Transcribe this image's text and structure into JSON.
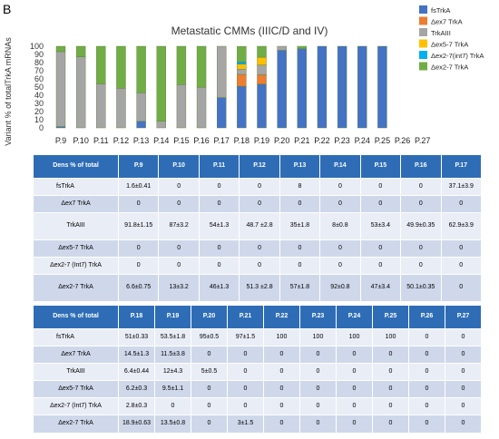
{
  "panel_letter": "B",
  "chart_data": {
    "type": "bar",
    "stacked": true,
    "title": "Metastatic CMMs (IIIC/D and IV)",
    "ylabel": "Variant % of totalTrkA mRNAs",
    "xlabel": "",
    "ylim": [
      0,
      100
    ],
    "yticks": [
      0,
      10,
      20,
      30,
      40,
      50,
      60,
      70,
      80,
      90,
      100
    ],
    "grid": false,
    "legend_position": "right",
    "categories": [
      "P.9",
      "P.10",
      "P.11",
      "P.12",
      "P.13",
      "P.14",
      "P.15",
      "P.16",
      "P.17",
      "P.18",
      "P.19",
      "P.20",
      "P.21",
      "P.22",
      "P.23",
      "P.24",
      "P.25",
      "P.26",
      "P.27"
    ],
    "series": [
      {
        "name": "fsTrkA",
        "color": "#4472c4",
        "values": [
          1.6,
          0,
          0,
          0,
          8,
          0,
          0,
          0,
          37.1,
          51,
          53.5,
          95,
          97,
          100,
          100,
          100,
          100,
          0,
          0
        ]
      },
      {
        "name": "Δex7 TrkA",
        "color": "#ed7d31",
        "values": [
          0,
          0,
          0,
          0,
          0,
          0,
          0,
          0,
          0,
          14.5,
          11.5,
          0,
          0,
          0,
          0,
          0,
          0,
          0,
          0
        ]
      },
      {
        "name": "TrkAIII",
        "color": "#a5a5a5",
        "values": [
          91.8,
          87,
          54,
          48.7,
          35,
          8,
          53,
          49.9,
          62.9,
          6.4,
          12,
          5,
          0,
          0,
          0,
          0,
          0,
          0,
          0
        ]
      },
      {
        "name": "Δex5-7 TrkA",
        "color": "#ffc000",
        "values": [
          0,
          0,
          0,
          0,
          0,
          0,
          0,
          0,
          0,
          6.2,
          9.5,
          0,
          0,
          0,
          0,
          0,
          0,
          0,
          0
        ]
      },
      {
        "name": "Δex2-7(int7) TrkA",
        "color": "#00b0f0",
        "values": [
          0,
          0,
          0,
          0,
          0,
          0,
          0,
          0,
          0,
          2.8,
          0,
          0,
          0,
          0,
          0,
          0,
          0,
          0,
          0
        ]
      },
      {
        "name": "Δex2-7 TrkA",
        "color": "#70ad47",
        "values": [
          6.6,
          13,
          46,
          51.3,
          57,
          92,
          47,
          50.1,
          0,
          18.9,
          13.5,
          0,
          3,
          0,
          0,
          0,
          0,
          0,
          0
        ]
      }
    ]
  },
  "table1": {
    "header": "Dens % of total",
    "columns": [
      "P.9",
      "P.10",
      "P.11",
      "P.12",
      "P.13",
      "P.14",
      "P.15",
      "P.16",
      "P.17"
    ],
    "rows": [
      {
        "label": "fsTrkA",
        "cells": [
          "1.6±0.41",
          "0",
          "0",
          "0",
          "8",
          "0",
          "0",
          "0",
          "37.1±3.9"
        ]
      },
      {
        "label": "Δex7 TrkA",
        "cells": [
          "0",
          "0",
          "0",
          "0",
          "0",
          "0",
          "0",
          "0",
          "0"
        ]
      },
      {
        "label": "TrkAIII",
        "cells": [
          "91.8±1.15",
          "87±3.2",
          "54±1.3",
          "48.7 ±2.8",
          "35±1.8",
          "8±0.8",
          "53±3.4",
          "49.9±0.35",
          "62.9±3.9"
        ]
      },
      {
        "label": "Δex5-7 TrkA",
        "cells": [
          "0",
          "0",
          "0",
          "0",
          "0",
          "0",
          "0",
          "0",
          "0"
        ]
      },
      {
        "label": "Δex2-7 (Int7) TrkA",
        "cells": [
          "0",
          "0",
          "0",
          "0",
          "0",
          "0",
          "0",
          "0",
          "0"
        ]
      },
      {
        "label": "Δex2-7 TrkA",
        "cells": [
          "6.6±0.75",
          "13±3.2",
          "46±1.3",
          "51.3 ±2.8",
          "57±1.8",
          "92±0.8",
          "47±3.4",
          "50.1±0.35",
          "0"
        ]
      }
    ]
  },
  "table2": {
    "header": "Dens % of total",
    "columns": [
      "P.18",
      "P.19",
      "P.20",
      "P.21",
      "P.22",
      "P.23",
      "P.24",
      "P.25",
      "P.26",
      "P.27"
    ],
    "rows": [
      {
        "label": "fsTrkA",
        "cells": [
          "51±0.33",
          "53.5±1.8",
          "95±0.5",
          "97±1.5",
          "100",
          "100",
          "100",
          "100",
          "0",
          "0"
        ]
      },
      {
        "label": "Δex7 TrkA",
        "cells": [
          "14.5±1.3",
          "11.5±3.8",
          "0",
          "0",
          "0",
          "0",
          "0",
          "0",
          "0",
          "0"
        ]
      },
      {
        "label": "TrkAIII",
        "cells": [
          "6.4±0.44",
          "12±4.3",
          "5±0.5",
          "0",
          "0",
          "0",
          "0",
          "0",
          "0",
          "0"
        ]
      },
      {
        "label": "Δex5-7 TrkA",
        "cells": [
          "6.2±0.3",
          "9.5±1.1",
          "0",
          "0",
          "0",
          "0",
          "0",
          "0",
          "0",
          "0"
        ]
      },
      {
        "label": "Δex2-7 (Int7) TrkA",
        "cells": [
          "2.8±0.3",
          "0",
          "0",
          "0",
          "0",
          "0",
          "0",
          "0",
          "0",
          "0"
        ]
      },
      {
        "label": "Δex2-7 TrkA",
        "cells": [
          "18.9±0.63",
          "13.5±0.8",
          "0",
          "3±1.5",
          "0",
          "0",
          "0",
          "0",
          "0",
          "0"
        ]
      }
    ]
  }
}
